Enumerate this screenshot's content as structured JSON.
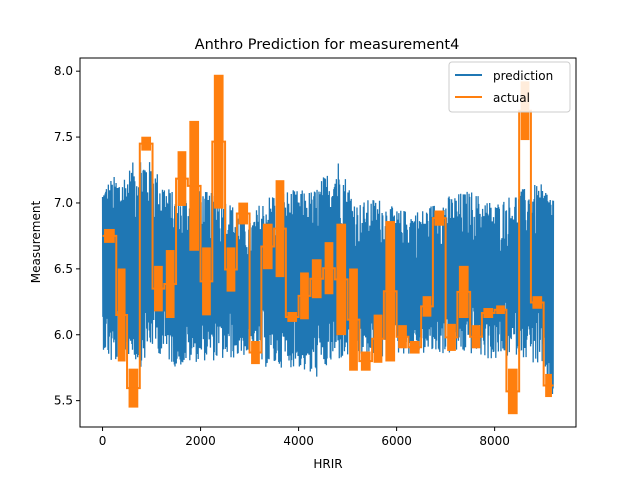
{
  "chart_data": {
    "type": "line",
    "title": "Anthro Prediction for measurement4",
    "xlabel": "HRIR",
    "ylabel": "Measurement",
    "xlim": [
      -460,
      9660
    ],
    "ylim": [
      5.3,
      8.1
    ],
    "xticks": [
      0,
      2000,
      4000,
      6000,
      8000
    ],
    "yticks": [
      5.5,
      6.0,
      6.5,
      7.0,
      7.5,
      8.0
    ],
    "xtick_labels": [
      "0",
      "2000",
      "4000",
      "6000",
      "8000"
    ],
    "ytick_labels": [
      "5.5",
      "6.0",
      "6.5",
      "7.0",
      "7.5",
      "8.0"
    ],
    "legend_position": "top-right",
    "grid": false,
    "series": [
      {
        "name": "prediction",
        "color": "#1f77b4",
        "n_points": 9200,
        "x_range": [
          0,
          9200
        ],
        "band": [
          {
            "x": 0,
            "lo": 5.9,
            "hi": 7.15
          },
          {
            "x": 200,
            "lo": 5.75,
            "hi": 7.2
          },
          {
            "x": 500,
            "lo": 5.85,
            "hi": 7.25
          },
          {
            "x": 800,
            "lo": 5.75,
            "hi": 7.4
          },
          {
            "x": 1000,
            "lo": 5.9,
            "hi": 7.3
          },
          {
            "x": 1500,
            "lo": 5.75,
            "hi": 7.05
          },
          {
            "x": 2000,
            "lo": 5.8,
            "hi": 7.1
          },
          {
            "x": 2500,
            "lo": 5.8,
            "hi": 7.05
          },
          {
            "x": 3000,
            "lo": 5.85,
            "hi": 6.85
          },
          {
            "x": 3200,
            "lo": 5.75,
            "hi": 7.0
          },
          {
            "x": 3500,
            "lo": 5.75,
            "hi": 7.1
          },
          {
            "x": 4000,
            "lo": 5.75,
            "hi": 7.1
          },
          {
            "x": 4300,
            "lo": 5.65,
            "hi": 7.1
          },
          {
            "x": 4800,
            "lo": 5.8,
            "hi": 7.35
          },
          {
            "x": 5200,
            "lo": 5.8,
            "hi": 7.0
          },
          {
            "x": 5600,
            "lo": 5.8,
            "hi": 7.05
          },
          {
            "x": 6000,
            "lo": 5.85,
            "hi": 6.95
          },
          {
            "x": 6500,
            "lo": 5.85,
            "hi": 6.95
          },
          {
            "x": 7000,
            "lo": 5.85,
            "hi": 7.05
          },
          {
            "x": 7500,
            "lo": 5.85,
            "hi": 7.1
          },
          {
            "x": 8000,
            "lo": 5.8,
            "hi": 7.0
          },
          {
            "x": 8500,
            "lo": 5.85,
            "hi": 7.1
          },
          {
            "x": 8900,
            "lo": 5.75,
            "hi": 7.15
          },
          {
            "x": 9200,
            "lo": 5.5,
            "hi": 7.1
          }
        ]
      },
      {
        "name": "actual",
        "color": "#ff7f0e",
        "segments": [
          {
            "x0": 0,
            "x1": 280,
            "lo": 6.72,
            "hi": 6.78
          },
          {
            "x0": 280,
            "x1": 500,
            "lo": 5.82,
            "hi": 6.48
          },
          {
            "x0": 500,
            "x1": 760,
            "lo": 5.47,
            "hi": 5.72
          },
          {
            "x0": 760,
            "x1": 1020,
            "lo": 7.42,
            "hi": 7.48
          },
          {
            "x0": 1020,
            "x1": 1260,
            "lo": 6.2,
            "hi": 6.5
          },
          {
            "x0": 1260,
            "x1": 1500,
            "lo": 6.15,
            "hi": 6.62
          },
          {
            "x0": 1500,
            "x1": 1740,
            "lo": 7.0,
            "hi": 7.37
          },
          {
            "x0": 1740,
            "x1": 2000,
            "lo": 6.66,
            "hi": 7.6
          },
          {
            "x0": 2000,
            "x1": 2240,
            "lo": 6.17,
            "hi": 6.64
          },
          {
            "x0": 2240,
            "x1": 2500,
            "lo": 6.98,
            "hi": 7.95
          },
          {
            "x0": 2500,
            "x1": 2740,
            "lo": 6.35,
            "hi": 6.64
          },
          {
            "x0": 2740,
            "x1": 3000,
            "lo": 6.86,
            "hi": 6.98
          },
          {
            "x0": 3000,
            "x1": 3240,
            "lo": 5.8,
            "hi": 5.93
          },
          {
            "x0": 3240,
            "x1": 3500,
            "lo": 6.52,
            "hi": 6.82
          },
          {
            "x0": 3500,
            "x1": 3740,
            "lo": 6.46,
            "hi": 7.15
          },
          {
            "x0": 3740,
            "x1": 4000,
            "lo": 6.12,
            "hi": 6.15
          },
          {
            "x0": 4000,
            "x1": 4240,
            "lo": 6.14,
            "hi": 6.45
          },
          {
            "x0": 4240,
            "x1": 4500,
            "lo": 6.3,
            "hi": 6.55
          },
          {
            "x0": 4500,
            "x1": 4740,
            "lo": 6.33,
            "hi": 6.68
          },
          {
            "x0": 4740,
            "x1": 5000,
            "lo": 6.02,
            "hi": 6.82
          },
          {
            "x0": 5000,
            "x1": 5240,
            "lo": 5.75,
            "hi": 6.48
          },
          {
            "x0": 5240,
            "x1": 5500,
            "lo": 5.75,
            "hi": 5.85
          },
          {
            "x0": 5500,
            "x1": 5740,
            "lo": 5.81,
            "hi": 6.13
          },
          {
            "x0": 5740,
            "x1": 6000,
            "lo": 5.82,
            "hi": 6.84
          },
          {
            "x0": 6000,
            "x1": 6240,
            "lo": 5.92,
            "hi": 6.05
          },
          {
            "x0": 6240,
            "x1": 6500,
            "lo": 5.88,
            "hi": 5.93
          },
          {
            "x0": 6500,
            "x1": 6740,
            "lo": 6.16,
            "hi": 6.27
          },
          {
            "x0": 6740,
            "x1": 7000,
            "lo": 6.85,
            "hi": 6.92
          },
          {
            "x0": 7000,
            "x1": 7240,
            "lo": 5.9,
            "hi": 6.06
          },
          {
            "x0": 7240,
            "x1": 7500,
            "lo": 6.15,
            "hi": 6.5
          },
          {
            "x0": 7500,
            "x1": 7740,
            "lo": 5.92,
            "hi": 6.05
          },
          {
            "x0": 7740,
            "x1": 8000,
            "lo": 6.15,
            "hi": 6.18
          },
          {
            "x0": 8000,
            "x1": 8240,
            "lo": 6.18,
            "hi": 6.2
          },
          {
            "x0": 8240,
            "x1": 8500,
            "lo": 5.42,
            "hi": 5.72
          },
          {
            "x0": 8500,
            "x1": 8740,
            "lo": 7.5,
            "hi": 7.9
          },
          {
            "x0": 8740,
            "x1": 9000,
            "lo": 6.22,
            "hi": 6.27
          },
          {
            "x0": 9000,
            "x1": 9200,
            "lo": 5.55,
            "hi": 5.68
          }
        ]
      }
    ]
  }
}
